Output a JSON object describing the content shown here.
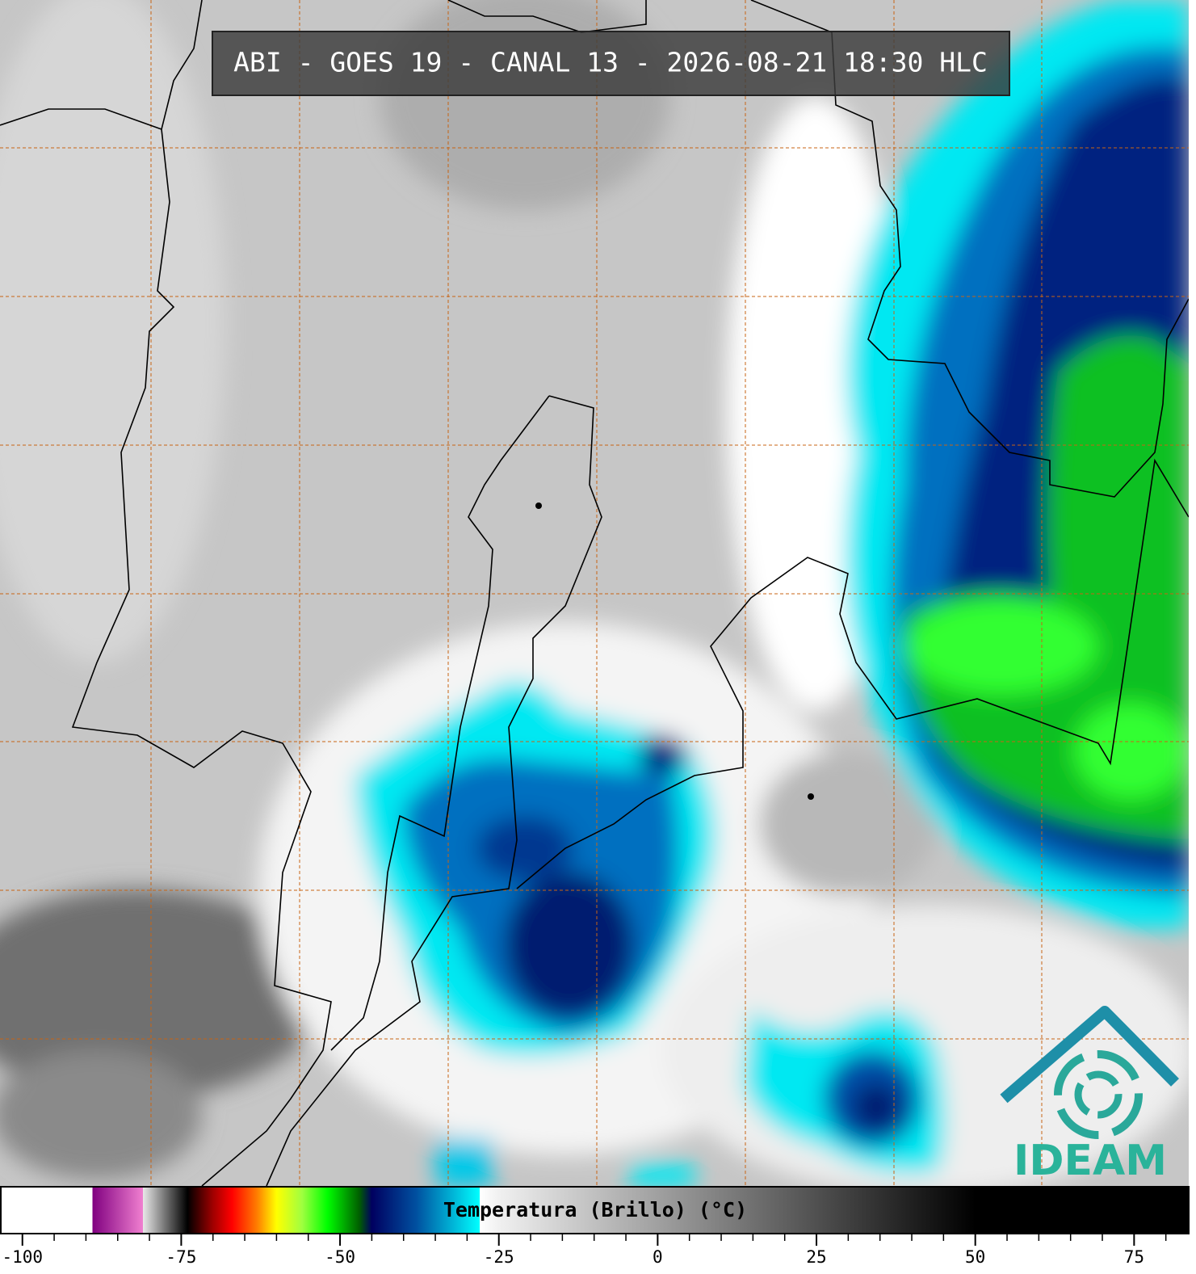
{
  "title": "ABI - GOES 19 - CANAL 13 - 2026-08-21 18:30 HLC",
  "logo_text": "IDEAM",
  "colorbar": {
    "label": "Temperatura (Brillo) (°C)",
    "range": [
      -103.4,
      83.6
    ],
    "ticks": [
      -100,
      -75,
      -50,
      -25,
      0,
      25,
      50,
      75
    ],
    "minor_ticks": [
      -95,
      -90,
      -85,
      -80,
      -70,
      -65,
      -60,
      -55,
      -45,
      -40,
      -35,
      -30,
      -20,
      -15,
      -10,
      -5,
      5,
      10,
      15,
      20,
      30,
      35,
      40,
      45,
      55,
      60,
      65,
      70,
      80
    ],
    "stops": [
      {
        "value": -103.4,
        "color": "#ffffff"
      },
      {
        "value": -89,
        "color": "#ffffff"
      },
      {
        "value": -89,
        "color": "#800080"
      },
      {
        "value": -81,
        "color": "#f080d0"
      },
      {
        "value": -81,
        "color": "#e8e8e8"
      },
      {
        "value": -75,
        "color": "#202020"
      },
      {
        "value": -74,
        "color": "#000000"
      },
      {
        "value": -70,
        "color": "#a00000"
      },
      {
        "value": -67,
        "color": "#ff0000"
      },
      {
        "value": -63,
        "color": "#ff8000"
      },
      {
        "value": -60,
        "color": "#ffff00"
      },
      {
        "value": -56,
        "color": "#a0ff40"
      },
      {
        "value": -52,
        "color": "#00ff00"
      },
      {
        "value": -47,
        "color": "#006000"
      },
      {
        "value": -45,
        "color": "#000060"
      },
      {
        "value": -38,
        "color": "#0050a0"
      },
      {
        "value": -28,
        "color": "#00ffff"
      },
      {
        "value": -28,
        "color": "#ffffff"
      },
      {
        "value": -25,
        "color": "#f0f0f0"
      },
      {
        "value": 50,
        "color": "#000000"
      },
      {
        "value": 83.6,
        "color": "#000000"
      }
    ]
  }
}
